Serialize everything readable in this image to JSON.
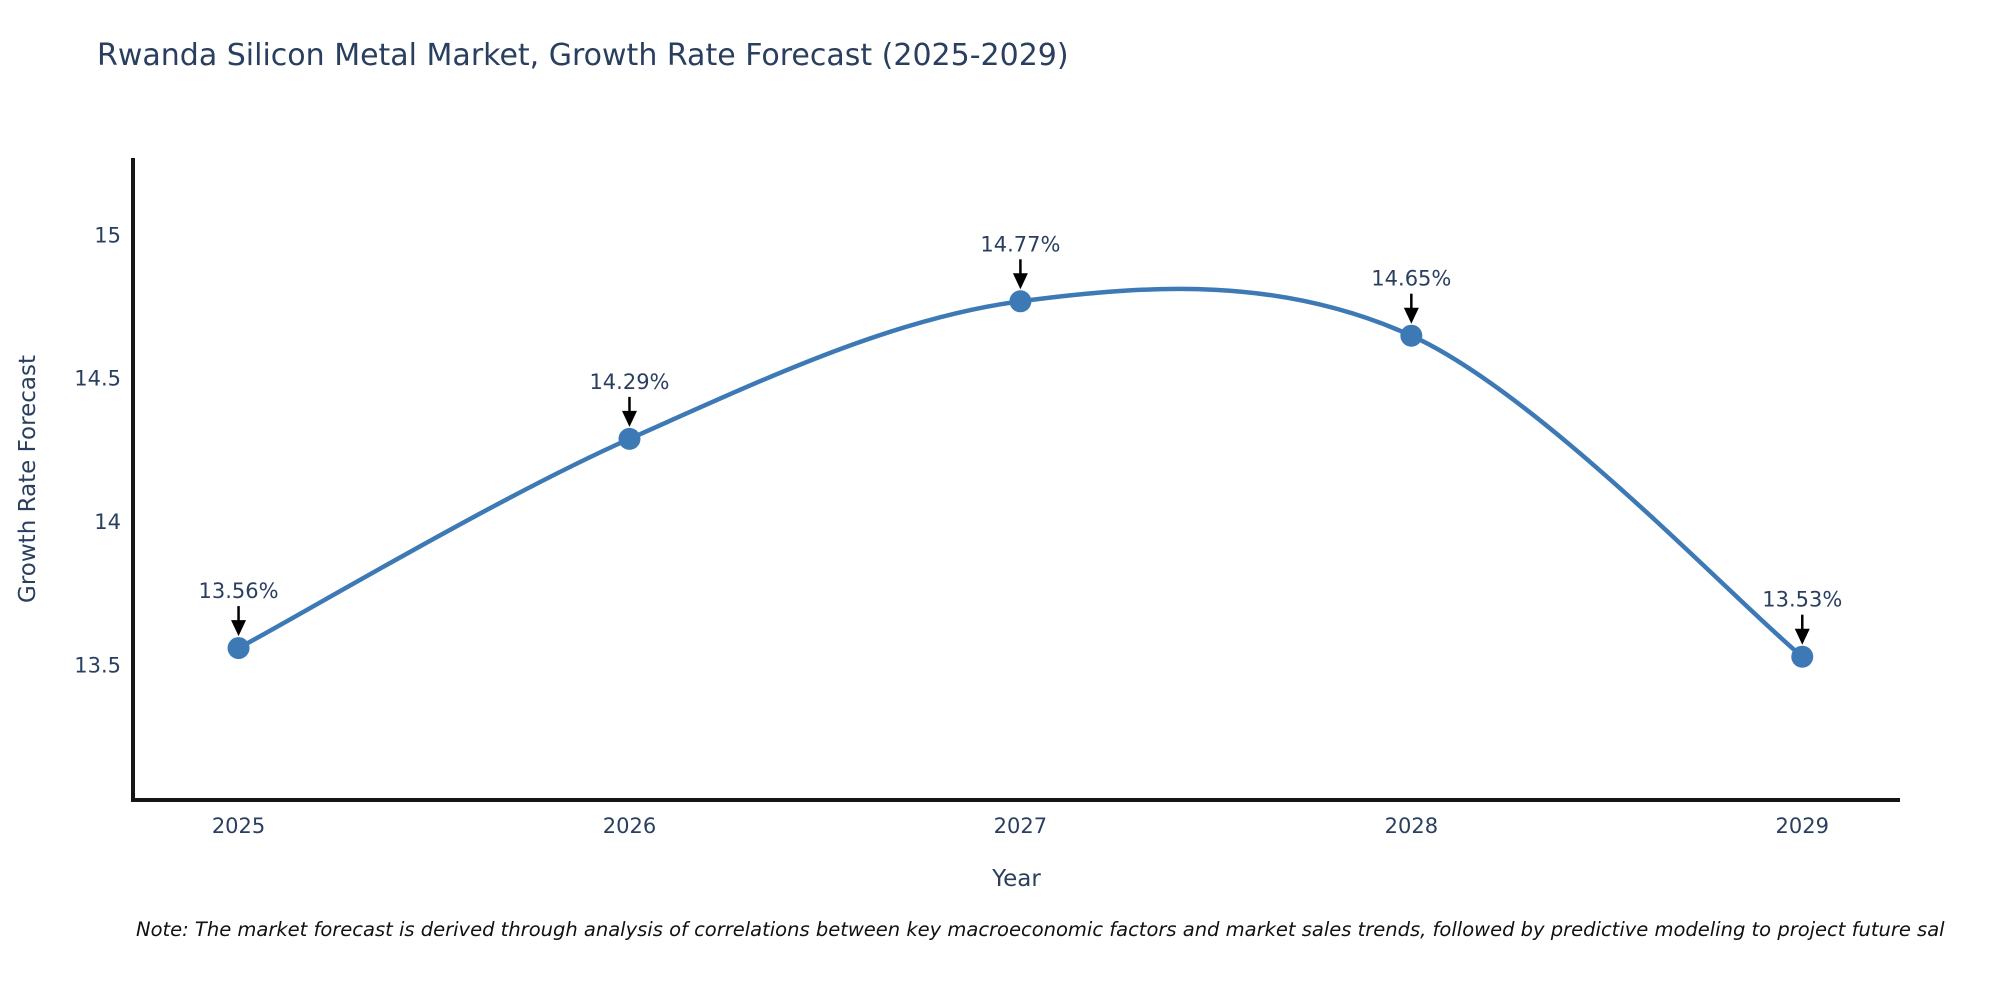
{
  "chart_data": {
    "type": "line",
    "line_shape": "spline",
    "title": "Rwanda Silicon Metal Market, Growth Rate Forecast (2025-2029)",
    "xlabel": "Year",
    "ylabel": "Growth Rate Forecast",
    "x": [
      2025,
      2026,
      2027,
      2028,
      2029
    ],
    "values": [
      13.56,
      14.29,
      14.77,
      14.65,
      13.53
    ],
    "point_labels": [
      "13.56%",
      "14.29%",
      "14.65%",
      "13.53%"
    ],
    "annotations": [
      "13.56%",
      "14.29%",
      "14.77%",
      "14.65%",
      "13.53%"
    ],
    "xticks": [
      2025,
      2026,
      2027,
      2028,
      2029
    ],
    "xtick_labels": [
      "2025",
      "2026",
      "2027",
      "2028",
      "2029"
    ],
    "yticks": [
      13.5,
      14,
      14.5,
      15
    ],
    "ytick_labels": [
      "13.5",
      "14",
      "14.5",
      "15"
    ],
    "xlim": [
      2024.73,
      2029.25
    ],
    "ylim": [
      13.03,
      15.27
    ],
    "grid": false,
    "legend": false,
    "colors": {
      "line": "#3d7ab5",
      "marker": "#3d7ab5",
      "text": "#2a3f5f",
      "axis": "#161616",
      "annotation_arrow": "#000000",
      "background": "#ffffff"
    }
  },
  "note": {
    "text": "Note: The market forecast is derived through analysis of correlations between key macroeconomic factors and market sales trends, followed by predictive modeling to project future sal"
  }
}
